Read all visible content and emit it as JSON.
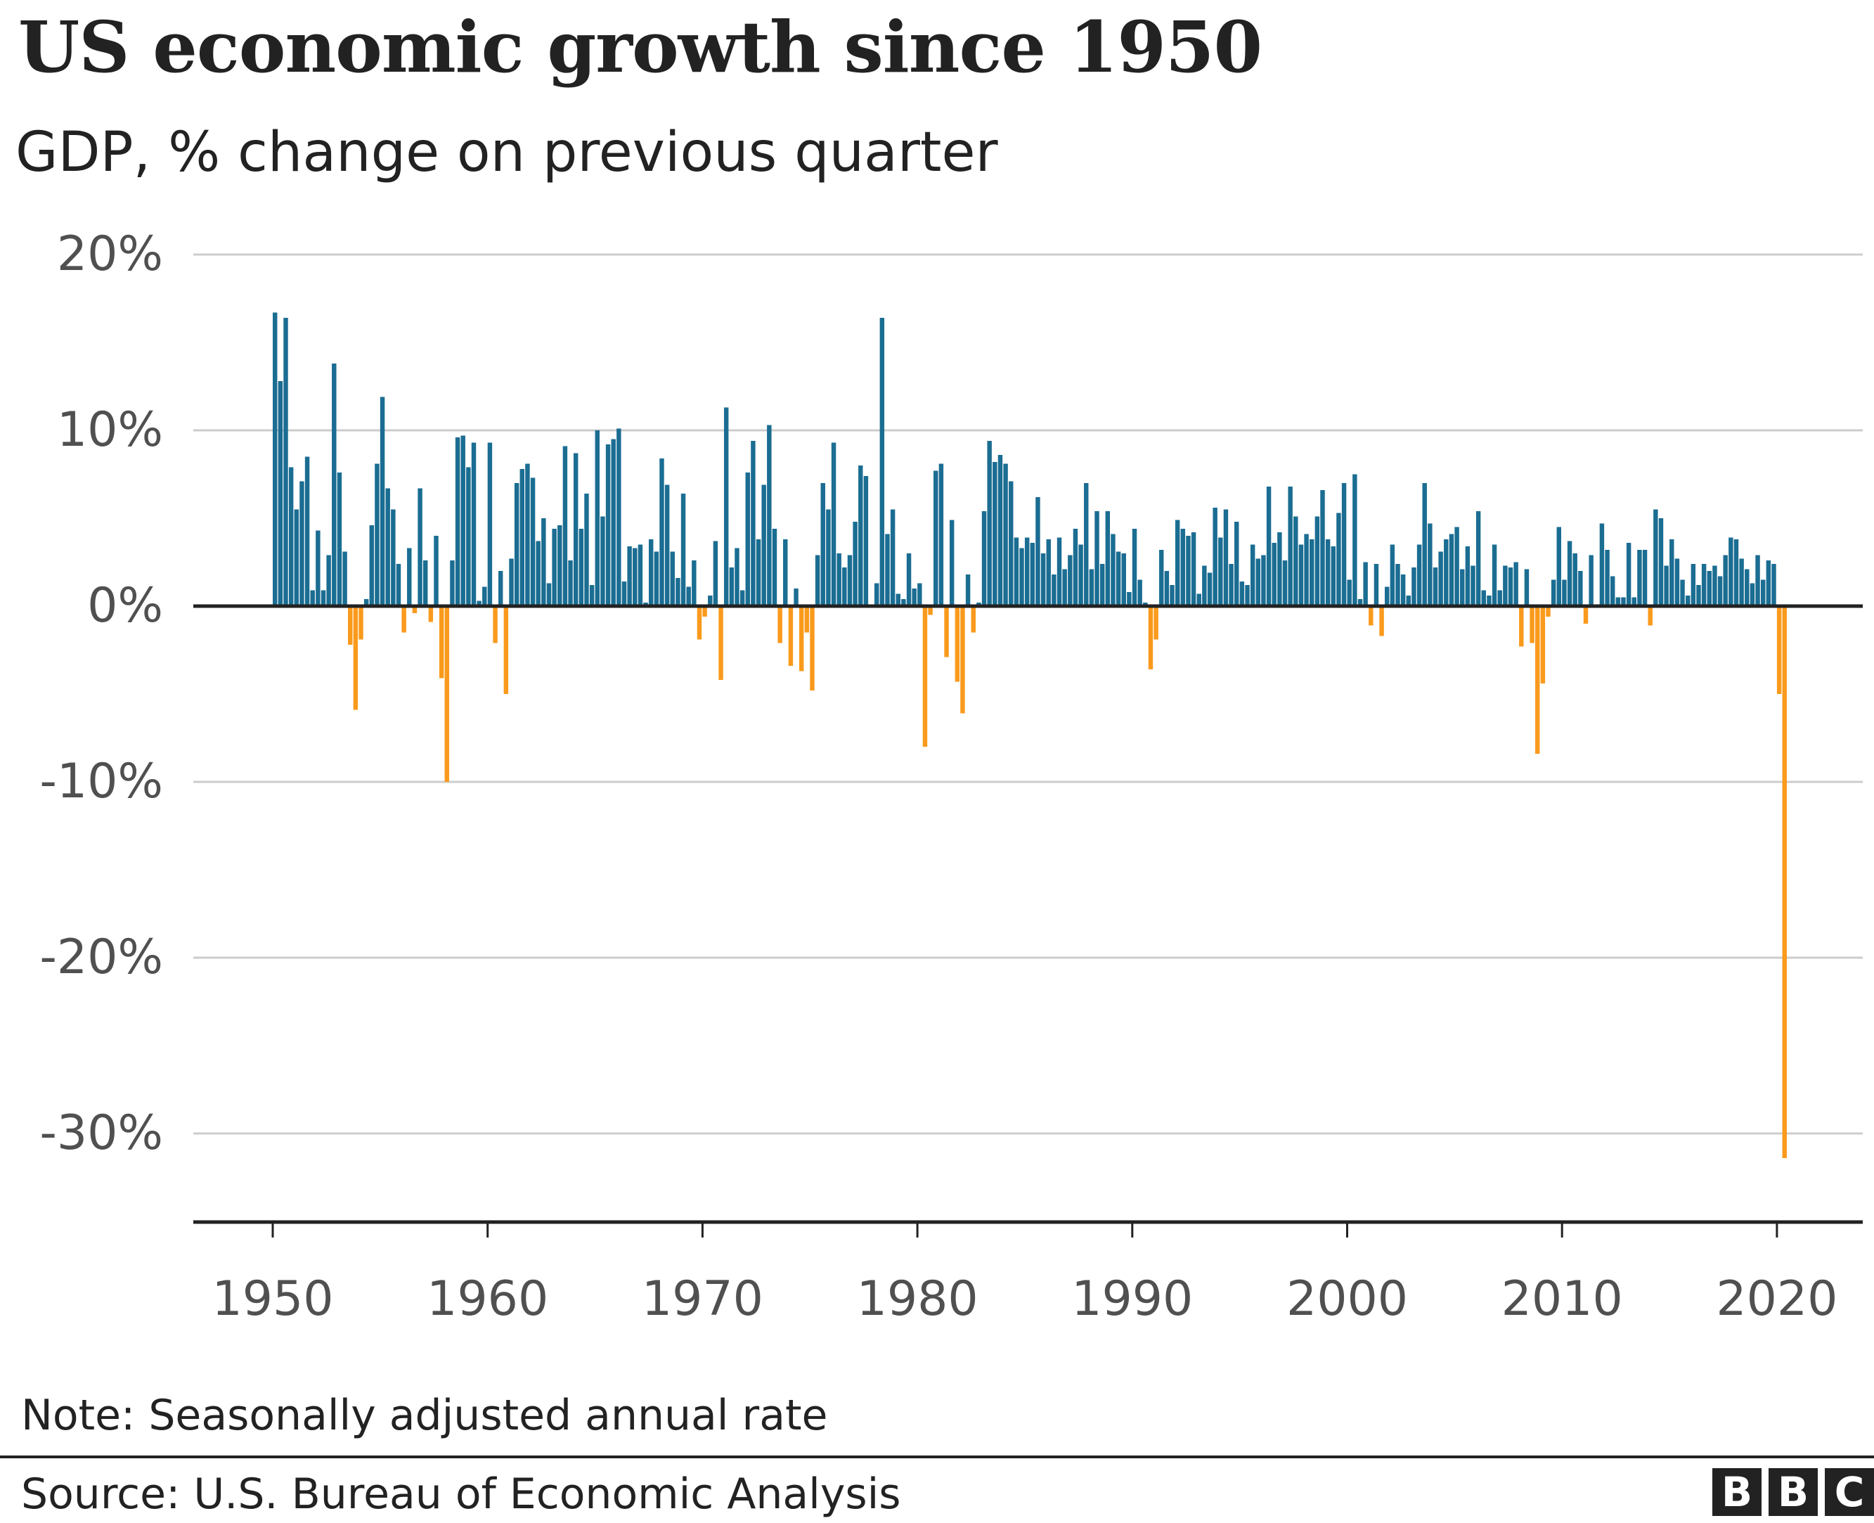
{
  "title": "US economic growth since 1950",
  "subtitle": "GDP, % change on previous quarter",
  "note": "Note: Seasonally adjusted annual rate",
  "source": "Source: U.S. Bureau of Economic Analysis",
  "logo": "BBC",
  "chart_data": {
    "type": "bar",
    "title": "US economic growth since 1950",
    "subtitle": "GDP, % change on previous quarter",
    "x_start": "1950 Q1",
    "frequency": "quarterly",
    "ylim": [
      -35,
      20
    ],
    "yticks": [
      20,
      10,
      0,
      -10,
      -20,
      -30
    ],
    "ytick_labels": [
      "20%",
      "10%",
      "0%",
      "-10%",
      "-20%",
      "-30%"
    ],
    "xticks": [
      1950,
      1960,
      1970,
      1980,
      1990,
      2000,
      2010,
      2020
    ],
    "xtick_labels": [
      "1950",
      "1960",
      "1970",
      "1980",
      "1990",
      "2000",
      "2010",
      "2020"
    ],
    "grid": true,
    "colors": {
      "positive": "#1b6d92",
      "negative": "#fa9a1c"
    },
    "values": [
      16.7,
      12.8,
      16.4,
      7.9,
      5.5,
      7.1,
      8.5,
      0.9,
      4.3,
      0.9,
      2.9,
      13.8,
      7.6,
      3.1,
      -2.2,
      -5.9,
      -1.9,
      0.4,
      4.6,
      8.1,
      11.9,
      6.7,
      5.5,
      2.4,
      -1.5,
      3.3,
      -0.4,
      6.7,
      2.6,
      -0.9,
      4.0,
      -4.1,
      -10.0,
      2.6,
      9.6,
      9.7,
      7.9,
      9.3,
      0.3,
      1.1,
      9.3,
      -2.1,
      2.0,
      -5.0,
      2.7,
      7.0,
      7.8,
      8.1,
      7.3,
      3.7,
      5.0,
      1.3,
      4.4,
      4.6,
      9.1,
      2.6,
      8.7,
      4.4,
      6.4,
      1.2,
      10.0,
      5.1,
      9.2,
      9.5,
      10.1,
      1.4,
      3.4,
      3.3,
      3.5,
      0.2,
      3.8,
      3.1,
      8.4,
      6.9,
      3.1,
      1.6,
      6.4,
      1.1,
      2.6,
      -1.9,
      -0.6,
      0.6,
      3.7,
      -4.2,
      11.3,
      2.2,
      3.3,
      0.9,
      7.6,
      9.4,
      3.8,
      6.9,
      10.3,
      4.4,
      -2.1,
      3.8,
      -3.4,
      1.0,
      -3.7,
      -1.5,
      -4.8,
      2.9,
      7.0,
      5.5,
      9.3,
      3.0,
      2.2,
      2.9,
      4.8,
      8.0,
      7.4,
      0.1,
      1.3,
      16.4,
      4.1,
      5.5,
      0.7,
      0.4,
      3.0,
      1.0,
      1.3,
      -8.0,
      -0.5,
      7.7,
      8.1,
      -2.9,
      4.9,
      -4.3,
      -6.1,
      1.8,
      -1.5,
      0.2,
      5.4,
      9.4,
      8.2,
      8.6,
      8.1,
      7.1,
      3.9,
      3.3,
      3.9,
      3.6,
      6.2,
      3.0,
      3.8,
      1.8,
      3.9,
      2.1,
      2.9,
      4.4,
      3.5,
      7.0,
      2.1,
      5.4,
      2.4,
      5.4,
      4.1,
      3.1,
      3.0,
      0.8,
      4.4,
      1.5,
      0.2,
      -3.6,
      -1.9,
      3.2,
      2.0,
      1.2,
      4.9,
      4.4,
      4.0,
      4.2,
      0.7,
      2.3,
      1.9,
      5.6,
      3.9,
      5.5,
      2.4,
      4.8,
      1.4,
      1.2,
      3.5,
      2.7,
      2.9,
      6.8,
      3.6,
      4.2,
      2.6,
      6.8,
      5.1,
      3.5,
      4.1,
      3.8,
      5.1,
      6.6,
      3.8,
      3.4,
      5.3,
      7.0,
      1.5,
      7.5,
      0.4,
      2.5,
      -1.1,
      2.4,
      -1.7,
      1.1,
      3.5,
      2.4,
      1.8,
      0.6,
      2.2,
      3.5,
      7.0,
      4.7,
      2.2,
      3.1,
      3.8,
      4.1,
      4.5,
      2.1,
      3.4,
      2.3,
      5.4,
      0.9,
      0.6,
      3.5,
      0.9,
      2.3,
      2.2,
      2.5,
      -2.3,
      2.1,
      -2.1,
      -8.4,
      -4.4,
      -0.6,
      1.5,
      4.5,
      1.5,
      3.7,
      3.0,
      2.0,
      -1.0,
      2.9,
      -0.1,
      4.7,
      3.2,
      1.7,
      0.5,
      0.5,
      3.6,
      0.5,
      3.2,
      3.2,
      -1.1,
      5.5,
      5.0,
      2.3,
      3.8,
      2.7,
      1.5,
      0.6,
      2.4,
      1.2,
      2.4,
      2.0,
      2.3,
      1.7,
      2.9,
      3.9,
      3.8,
      2.7,
      2.1,
      1.3,
      2.9,
      1.5,
      2.6,
      2.4,
      -5.0,
      -31.4
    ]
  }
}
